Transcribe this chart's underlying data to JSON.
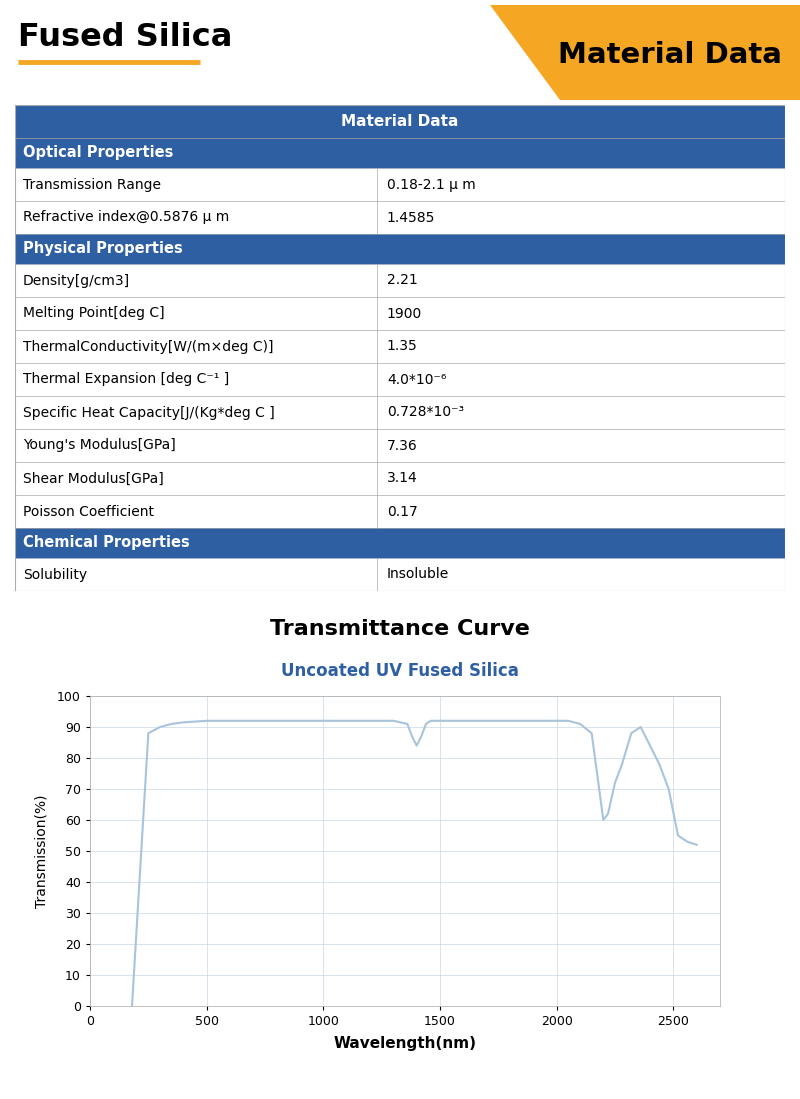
{
  "title_left": "Fused Silica",
  "title_right": "Material Data",
  "underline_color": "#F5A623",
  "banner_color": "#F5A623",
  "header_bg": "#2E5FA3",
  "header_text_color": "#FFFFFF",
  "section_bg": "#2E5FA3",
  "section_text_color": "#FFFFFF",
  "row_bg": "#FFFFFF",
  "border_color": "#AAAAAA",
  "table_header": "Material Data",
  "sections": [
    {
      "name": "Optical Properties",
      "rows": [
        [
          "Transmission Range",
          "0.18-2.1 μ m"
        ],
        [
          "Refractive index@0.5876 μ m",
          "1.4585"
        ]
      ]
    },
    {
      "name": "Physical Properties",
      "rows": [
        [
          "Density[g/cm3]",
          "2.21"
        ],
        [
          "Melting Point[deg C]",
          "1900"
        ],
        [
          "ThermalConductivity[W/(m×deg C)]",
          "1.35"
        ],
        [
          "Thermal Expansion [deg C⁻¹ ]",
          "4.0*10⁻⁶"
        ],
        [
          "Specific Heat Capacity[J/(Kg*deg C ]",
          "0.728*10⁻³"
        ],
        [
          "Young's Modulus[GPa]",
          "7.36"
        ],
        [
          "Shear Modulus[GPa]",
          "3.14"
        ],
        [
          "Poisson Coefficient",
          "0.17"
        ]
      ]
    },
    {
      "name": "Chemical Properties",
      "rows": [
        [
          "Solubility",
          "Insoluble"
        ]
      ]
    }
  ],
  "chart_title": "Transmittance Curve",
  "chart_subtitle": "Uncoated UV Fused Silica",
  "chart_subtitle_color": "#2E5FA3",
  "curve_color": "#A8C4DC",
  "xlabel": "Wavelength(nm)",
  "ylabel": "Transmission(%)",
  "xlim": [
    0,
    2700
  ],
  "ylim": [
    0,
    100
  ],
  "xticks": [
    0,
    500,
    1000,
    1500,
    2000,
    2500
  ],
  "yticks": [
    0,
    10,
    20,
    30,
    40,
    50,
    60,
    70,
    80,
    90,
    100
  ],
  "wavelength": [
    180,
    250,
    300,
    350,
    400,
    500,
    600,
    700,
    800,
    900,
    1000,
    1100,
    1200,
    1300,
    1360,
    1380,
    1400,
    1420,
    1440,
    1460,
    1480,
    1500,
    1550,
    1600,
    1700,
    1800,
    1900,
    2000,
    2050,
    2100,
    2150,
    2200,
    2220,
    2250,
    2280,
    2320,
    2360,
    2400,
    2440,
    2480,
    2520,
    2560,
    2600
  ],
  "transmission": [
    0,
    88,
    90,
    91,
    91.5,
    92,
    92,
    92,
    92,
    92,
    92,
    92,
    92,
    92,
    91,
    87,
    84,
    87,
    91,
    92,
    92,
    92,
    92,
    92,
    92,
    92,
    92,
    92,
    92,
    91,
    88,
    60,
    62,
    72,
    78,
    88,
    90,
    84,
    78,
    70,
    55,
    53,
    52
  ]
}
